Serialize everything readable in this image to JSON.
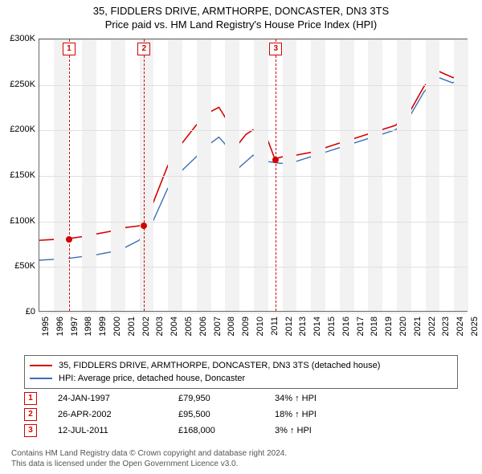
{
  "title": {
    "line1": "35, FIDDLERS DRIVE, ARMTHORPE, DONCASTER, DN3 3TS",
    "line2": "Price paid vs. HM Land Registry's House Price Index (HPI)",
    "fontsize": 13,
    "color": "#000000"
  },
  "chart": {
    "type": "line",
    "background": "#ffffff",
    "band_color": "#f2f2f2",
    "grid_color": "#e0e0e0",
    "border_color": "#666666",
    "x": {
      "min": 1995,
      "max": 2025,
      "labels": [
        "1995",
        "1996",
        "1997",
        "1998",
        "1999",
        "2000",
        "2001",
        "2002",
        "2003",
        "2004",
        "2005",
        "2006",
        "2007",
        "2008",
        "2009",
        "2010",
        "2011",
        "2012",
        "2013",
        "2014",
        "2015",
        "2016",
        "2017",
        "2018",
        "2019",
        "2020",
        "2021",
        "2022",
        "2023",
        "2024",
        "2025"
      ]
    },
    "y": {
      "min": 0,
      "max": 300000,
      "ticks": [
        0,
        50000,
        100000,
        150000,
        200000,
        250000,
        300000
      ],
      "labels": [
        "£0",
        "£50K",
        "£100K",
        "£150K",
        "£200K",
        "£250K",
        "£300K"
      ],
      "label_fontsize": 11
    },
    "series": [
      {
        "name": "35, FIDDLERS DRIVE, ARMTHORPE, DONCASTER, DN3 3TS (detached house)",
        "color": "#d40000",
        "width": 1.6,
        "data": [
          [
            1995.0,
            78000
          ],
          [
            1996.0,
            79000
          ],
          [
            1997.07,
            79950
          ],
          [
            1998.0,
            82000
          ],
          [
            1999.0,
            85000
          ],
          [
            2000.0,
            88000
          ],
          [
            2001.0,
            92000
          ],
          [
            2002.0,
            94000
          ],
          [
            2002.32,
            95500
          ],
          [
            2003.0,
            120000
          ],
          [
            2004.0,
            160000
          ],
          [
            2005.0,
            185000
          ],
          [
            2006.0,
            205000
          ],
          [
            2007.0,
            220000
          ],
          [
            2007.6,
            225000
          ],
          [
            2008.0,
            215000
          ],
          [
            2008.5,
            200000
          ],
          [
            2009.0,
            185000
          ],
          [
            2009.5,
            195000
          ],
          [
            2010.0,
            200000
          ],
          [
            2010.5,
            195000
          ],
          [
            2011.0,
            190000
          ],
          [
            2011.53,
            168000
          ],
          [
            2012.0,
            170000
          ],
          [
            2013.0,
            172000
          ],
          [
            2014.0,
            175000
          ],
          [
            2015.0,
            180000
          ],
          [
            2016.0,
            185000
          ],
          [
            2017.0,
            190000
          ],
          [
            2018.0,
            195000
          ],
          [
            2019.0,
            200000
          ],
          [
            2020.0,
            205000
          ],
          [
            2021.0,
            220000
          ],
          [
            2022.0,
            248000
          ],
          [
            2023.0,
            265000
          ],
          [
            2024.0,
            258000
          ],
          [
            2025.0,
            256000
          ]
        ]
      },
      {
        "name": "HPI: Average price, detached house, Doncaster",
        "color": "#3b6fb6",
        "width": 1.4,
        "data": [
          [
            1995.0,
            56000
          ],
          [
            1996.0,
            57000
          ],
          [
            1997.0,
            58000
          ],
          [
            1998.0,
            60000
          ],
          [
            1999.0,
            62000
          ],
          [
            2000.0,
            65000
          ],
          [
            2001.0,
            70000
          ],
          [
            2002.0,
            78000
          ],
          [
            2003.0,
            100000
          ],
          [
            2004.0,
            135000
          ],
          [
            2005.0,
            155000
          ],
          [
            2006.0,
            170000
          ],
          [
            2007.0,
            185000
          ],
          [
            2007.6,
            192000
          ],
          [
            2008.0,
            185000
          ],
          [
            2008.5,
            170000
          ],
          [
            2009.0,
            158000
          ],
          [
            2009.5,
            165000
          ],
          [
            2010.0,
            172000
          ],
          [
            2010.5,
            168000
          ],
          [
            2011.0,
            165000
          ],
          [
            2012.0,
            163000
          ],
          [
            2013.0,
            165000
          ],
          [
            2014.0,
            170000
          ],
          [
            2015.0,
            175000
          ],
          [
            2016.0,
            180000
          ],
          [
            2017.0,
            185000
          ],
          [
            2018.0,
            190000
          ],
          [
            2019.0,
            195000
          ],
          [
            2020.0,
            200000
          ],
          [
            2021.0,
            215000
          ],
          [
            2022.0,
            242000
          ],
          [
            2023.0,
            258000
          ],
          [
            2024.0,
            252000
          ],
          [
            2025.0,
            260000
          ]
        ]
      }
    ],
    "markers": [
      {
        "n": "1",
        "x": 1997.07,
        "y": 79950,
        "color": "#d40000"
      },
      {
        "n": "2",
        "x": 2002.32,
        "y": 95500,
        "color": "#d40000"
      },
      {
        "n": "3",
        "x": 2011.53,
        "y": 168000,
        "color": "#d40000"
      }
    ]
  },
  "legend": {
    "items": [
      {
        "color": "#d40000",
        "label": "35, FIDDLERS DRIVE, ARMTHORPE, DONCASTER, DN3 3TS (detached house)"
      },
      {
        "color": "#3b6fb6",
        "label": "HPI: Average price, detached house, Doncaster"
      }
    ]
  },
  "transactions": [
    {
      "n": "1",
      "color": "#d40000",
      "date": "24-JAN-1997",
      "price": "£79,950",
      "delta": "34% ↑ HPI"
    },
    {
      "n": "2",
      "color": "#d40000",
      "date": "26-APR-2002",
      "price": "£95,500",
      "delta": "18% ↑ HPI"
    },
    {
      "n": "3",
      "color": "#d40000",
      "date": "12-JUL-2011",
      "price": "£168,000",
      "delta": "3% ↑ HPI"
    }
  ],
  "footer": {
    "line1": "Contains HM Land Registry data © Crown copyright and database right 2024.",
    "line2": "This data is licensed under the Open Government Licence v3.0."
  }
}
